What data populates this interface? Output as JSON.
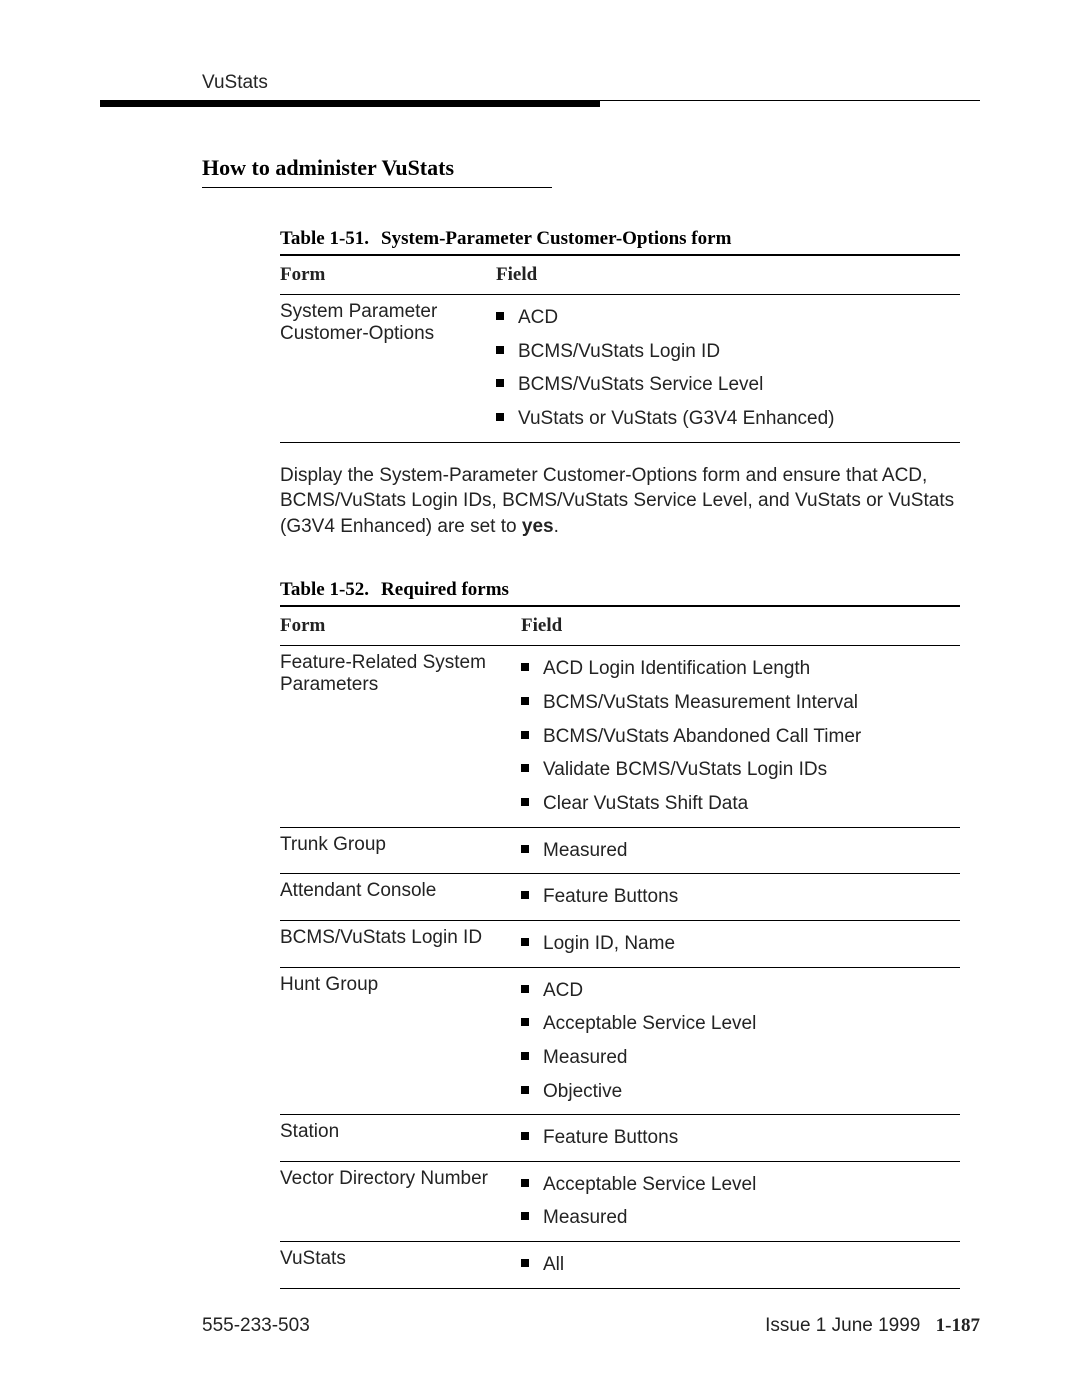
{
  "header": {
    "running_title": "VuStats"
  },
  "section": {
    "heading": "How to administer VuStats"
  },
  "table1": {
    "caption_num": "Table 1-51.",
    "caption_title": "System-Parameter Customer-Options form",
    "col_form": "Form",
    "col_field": "Field",
    "rows": [
      {
        "form": "System Parameter Customer-Options",
        "fields": [
          "ACD",
          "BCMS/VuStats Login ID",
          "BCMS/VuStats Service Level",
          "VuStats or VuStats (G3V4 Enhanced)"
        ]
      }
    ]
  },
  "para1": {
    "pre": "Display the System-Parameter Customer-Options form and ensure that ACD, BCMS/VuStats Login IDs, BCMS/VuStats Service Level, and VuStats or VuStats (G3V4 Enhanced) are set to ",
    "bold": "yes",
    "post": "."
  },
  "table2": {
    "caption_num": "Table 1-52.",
    "caption_title": "Required forms",
    "col_form": "Form",
    "col_field": "Field",
    "rows": [
      {
        "form": "Feature-Related System Parameters",
        "fields": [
          "ACD Login Identification Length",
          "BCMS/VuStats Measurement Interval",
          "BCMS/VuStats Abandoned Call Timer",
          "Validate BCMS/VuStats Login IDs",
          "Clear VuStats Shift Data"
        ]
      },
      {
        "form": "Trunk Group",
        "fields": [
          "Measured"
        ]
      },
      {
        "form": "Attendant Console",
        "fields": [
          "Feature Buttons"
        ]
      },
      {
        "form": "BCMS/VuStats Login ID",
        "fields": [
          "Login ID, Name"
        ]
      },
      {
        "form": "Hunt Group",
        "fields": [
          "ACD",
          "Acceptable Service Level",
          "Measured",
          "Objective"
        ]
      },
      {
        "form": "Station",
        "fields": [
          "Feature Buttons"
        ]
      },
      {
        "form": "Vector Directory Number",
        "fields": [
          "Acceptable Service Level",
          "Measured"
        ]
      },
      {
        "form": "VuStats",
        "fields": [
          "All"
        ]
      }
    ]
  },
  "footer": {
    "doc_number": "555-233-503",
    "issue": "Issue 1 June 1999",
    "page": "1-187"
  }
}
